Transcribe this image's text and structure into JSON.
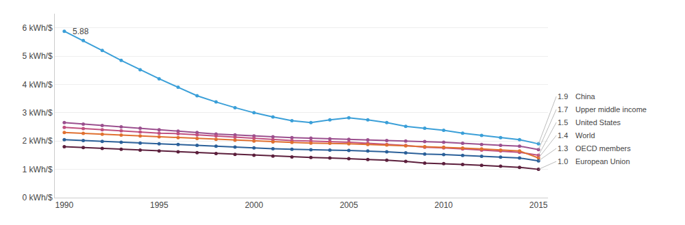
{
  "chart_data": {
    "type": "line",
    "x": [
      1990,
      1991,
      1992,
      1993,
      1994,
      1995,
      1996,
      1997,
      1998,
      1999,
      2000,
      2001,
      2002,
      2003,
      2004,
      2005,
      2006,
      2007,
      2008,
      2009,
      2010,
      2011,
      2012,
      2013,
      2014,
      2015
    ],
    "series": [
      {
        "name": "China",
        "color": "#3a9fd8",
        "values": [
          5.88,
          5.55,
          5.2,
          4.85,
          4.52,
          4.2,
          3.9,
          3.6,
          3.38,
          3.18,
          3.0,
          2.85,
          2.72,
          2.65,
          2.75,
          2.82,
          2.75,
          2.65,
          2.52,
          2.45,
          2.38,
          2.28,
          2.2,
          2.12,
          2.05,
          1.9
        ]
      },
      {
        "name": "Upper middle income",
        "color": "#9b4f8e",
        "values": [
          2.65,
          2.6,
          2.55,
          2.5,
          2.45,
          2.4,
          2.35,
          2.3,
          2.25,
          2.22,
          2.18,
          2.15,
          2.12,
          2.1,
          2.08,
          2.06,
          2.04,
          2.02,
          2.0,
          1.98,
          1.96,
          1.92,
          1.88,
          1.85,
          1.82,
          1.7
        ]
      },
      {
        "name": "United States",
        "color": "#c05080",
        "values": [
          2.48,
          2.44,
          2.4,
          2.36,
          2.32,
          2.28,
          2.26,
          2.22,
          2.18,
          2.14,
          2.1,
          2.05,
          2.02,
          2.0,
          1.98,
          1.96,
          1.92,
          1.88,
          1.84,
          1.78,
          1.76,
          1.72,
          1.68,
          1.65,
          1.6,
          1.5
        ]
      },
      {
        "name": "World",
        "color": "#e07030",
        "values": [
          2.3,
          2.27,
          2.24,
          2.21,
          2.18,
          2.15,
          2.12,
          2.09,
          2.06,
          2.03,
          2.0,
          1.97,
          1.95,
          1.93,
          1.92,
          1.9,
          1.88,
          1.86,
          1.83,
          1.8,
          1.78,
          1.75,
          1.72,
          1.68,
          1.65,
          1.4
        ]
      },
      {
        "name": "OECD members",
        "color": "#2b6099",
        "values": [
          2.05,
          2.02,
          1.99,
          1.96,
          1.93,
          1.9,
          1.88,
          1.85,
          1.82,
          1.79,
          1.76,
          1.73,
          1.71,
          1.69,
          1.68,
          1.67,
          1.65,
          1.62,
          1.58,
          1.54,
          1.52,
          1.49,
          1.46,
          1.43,
          1.4,
          1.3
        ]
      },
      {
        "name": "European Union",
        "color": "#5c1f3c",
        "values": [
          1.8,
          1.77,
          1.74,
          1.71,
          1.68,
          1.65,
          1.62,
          1.59,
          1.56,
          1.53,
          1.5,
          1.47,
          1.44,
          1.42,
          1.4,
          1.38,
          1.35,
          1.32,
          1.28,
          1.22,
          1.2,
          1.17,
          1.14,
          1.11,
          1.07,
          1.0
        ]
      }
    ],
    "annotations": [
      {
        "text": "5.88",
        "x": 1990,
        "y": 5.88
      },
      {
        "text": "1.9",
        "x": 2015,
        "y": 1.9
      },
      {
        "text": "1.7",
        "x": 2015,
        "y": 1.7
      },
      {
        "text": "1.5",
        "x": 2015,
        "y": 1.5
      },
      {
        "text": "1.4",
        "x": 2015,
        "y": 1.4
      },
      {
        "text": "1.3",
        "x": 2015,
        "y": 1.3
      },
      {
        "text": "1.0",
        "x": 2015,
        "y": 1.0
      }
    ],
    "xlim": [
      1989.5,
      2015.5
    ],
    "xticks": [
      1990,
      1995,
      2000,
      2005,
      2010,
      2015
    ],
    "ylim": [
      0,
      6.5
    ],
    "yticks": [
      {
        "value": 0,
        "label": "0 kWh/$"
      },
      {
        "value": 1,
        "label": "1 kWh/$"
      },
      {
        "value": 2,
        "label": "2 kWh/$"
      },
      {
        "value": 3,
        "label": "3 kWh/$"
      },
      {
        "value": 4,
        "label": "4 kWh/$"
      },
      {
        "value": 5,
        "label": "5 kWh/$"
      },
      {
        "value": 6,
        "label": "6 kWh/$"
      }
    ],
    "grid": true
  }
}
